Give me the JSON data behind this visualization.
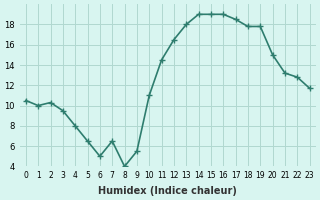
{
  "x": [
    0,
    1,
    2,
    3,
    4,
    5,
    6,
    7,
    8,
    9,
    10,
    11,
    12,
    13,
    14,
    15,
    16,
    17,
    18,
    19,
    20,
    21,
    22,
    23
  ],
  "y": [
    10.5,
    10.0,
    10.3,
    9.5,
    8.0,
    6.5,
    5.0,
    6.5,
    4.0,
    5.5,
    11.0,
    14.5,
    16.5,
    18.0,
    19.0,
    19.0,
    19.0,
    18.5,
    17.8,
    17.8,
    15.0,
    13.2,
    12.8,
    11.7
  ],
  "line_color": "#2e7d6e",
  "marker": "+",
  "marker_size": 4,
  "bg_color": "#d8f5f0",
  "grid_color": "#b0d8d0",
  "xlabel": "Humidex (Indice chaleur)",
  "title": "",
  "ylim": [
    4,
    20
  ],
  "xlim": [
    -0.5,
    23.5
  ],
  "yticks": [
    4,
    6,
    8,
    10,
    12,
    14,
    16,
    18
  ],
  "xticks": [
    0,
    1,
    2,
    3,
    4,
    5,
    6,
    7,
    8,
    9,
    10,
    11,
    12,
    13,
    14,
    15,
    16,
    17,
    18,
    19,
    20,
    21,
    22,
    23
  ],
  "xtick_labels": [
    "0",
    "1",
    "2",
    "3",
    "4",
    "5",
    "6",
    "7",
    "8",
    "9",
    "10",
    "11",
    "12",
    "13",
    "14",
    "15",
    "16",
    "17",
    "18",
    "19",
    "20",
    "21",
    "22",
    "23"
  ],
  "line_width": 1.2
}
